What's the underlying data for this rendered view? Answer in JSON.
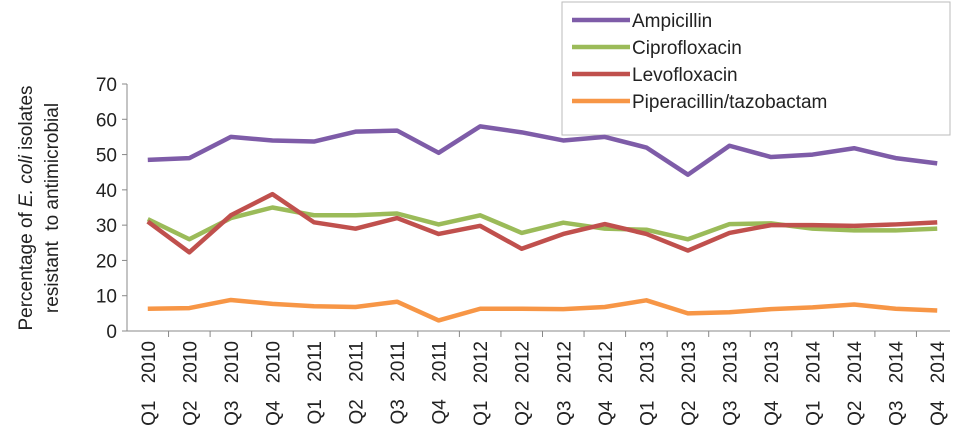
{
  "chart_data": {
    "type": "line",
    "y_label": [
      "Percentage of",
      "E. coli",
      "isolates",
      "resistant  to antimicrobial"
    ],
    "categories": [
      "Q1 2010",
      "Q2 2010",
      "Q3 2010",
      "Q4 2010",
      "Q1 2011",
      "Q2 2011",
      "Q3 2011",
      "Q4 2011",
      "Q1 2012",
      "Q2 2012",
      "Q3 2012",
      "Q4 2012",
      "Q1 2013",
      "Q2 2013",
      "Q3 2013",
      "Q4 2013",
      "Q1 2014",
      "Q2 2014",
      "Q3 2014",
      "Q4 2014"
    ],
    "series": [
      {
        "name": "Ampicillin",
        "color": "#7e5ca8",
        "values": [
          48.5,
          49,
          55,
          54,
          53.7,
          56.5,
          56.8,
          50.5,
          58,
          56.3,
          54,
          55,
          52,
          44.3,
          52.5,
          49.3,
          50,
          51.8,
          49,
          47.5
        ]
      },
      {
        "name": "Ciprofloxacin",
        "color": "#9bbb59",
        "values": [
          31.7,
          26,
          32,
          35,
          32.8,
          32.8,
          33.3,
          30.2,
          32.8,
          27.8,
          30.7,
          29,
          28.7,
          26,
          30.3,
          30.5,
          29,
          28.5,
          28.5,
          29
        ]
      },
      {
        "name": "Levofloxacin",
        "color": "#c0504d",
        "values": [
          31,
          22.3,
          32.8,
          38.8,
          30.8,
          29,
          32,
          27.5,
          29.8,
          23.3,
          27.5,
          30.3,
          27.5,
          22.8,
          27.8,
          30,
          30,
          29.8,
          30.2,
          30.8
        ]
      },
      {
        "name": "Piperacillin/tazobactam",
        "color": "#f79646",
        "values": [
          6.3,
          6.5,
          8.8,
          7.7,
          7,
          6.8,
          8.3,
          3,
          6.3,
          6.3,
          6.2,
          6.8,
          8.7,
          5,
          5.3,
          6.2,
          6.7,
          7.5,
          6.3,
          5.8
        ]
      }
    ],
    "ylim": [
      0,
      70
    ],
    "yticks": [
      0,
      10,
      20,
      30,
      40,
      50,
      60,
      70
    ]
  }
}
